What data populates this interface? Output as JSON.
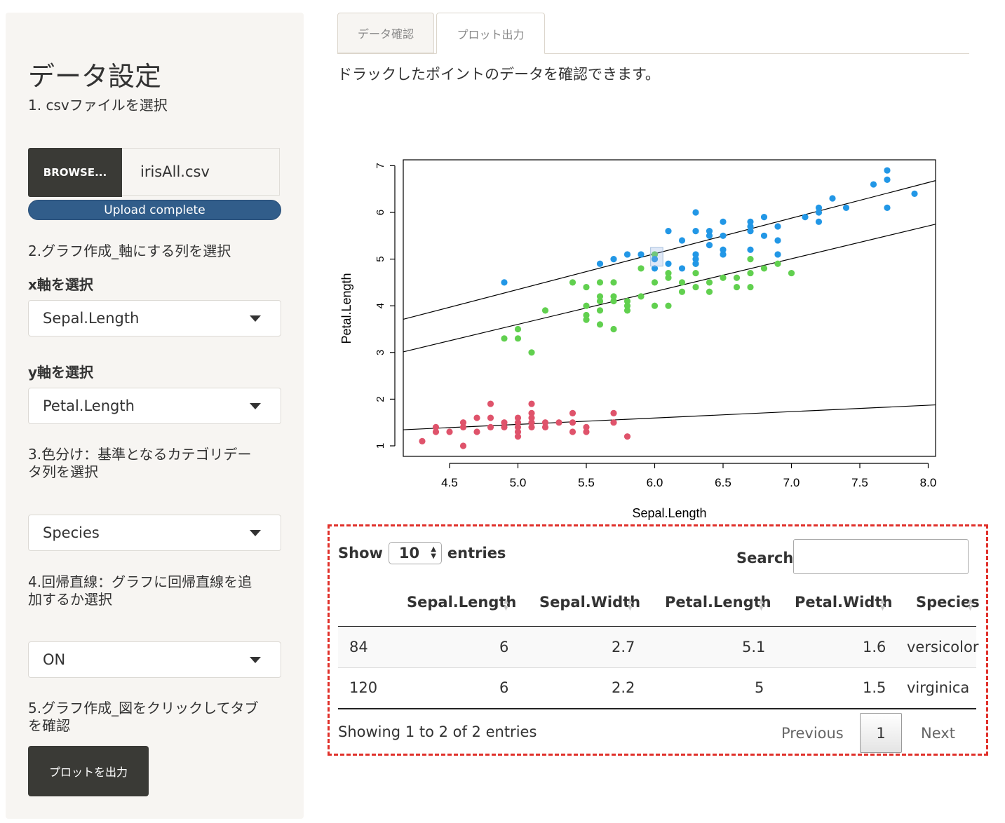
{
  "sidebar": {
    "title": "データ設定",
    "step1": "1. csvファイルを選択",
    "browse_label": "BROWSE...",
    "file_name": "irisAll.csv",
    "upload_status": "Upload complete",
    "step2": "2.グラフ作成_軸にする列を選択",
    "x_label": "x軸を選択",
    "x_value": "Sepal.Length",
    "y_label": "y軸を選択",
    "y_value": "Petal.Length",
    "step3_line1": "3.色分け：基準となるカテゴリデー",
    "step3_line2": "タ列を選択",
    "color_value": "Species",
    "step4_line1": "4.回帰直線：グラフに回帰直線を追",
    "step4_line2": "加するか選択",
    "reg_value": "ON",
    "step5_line1": "5.グラフ作成_図をクリックしてタブ",
    "step5_line2": "を確認",
    "plot_button": "プロットを出力"
  },
  "tabs": [
    {
      "label": "データ確認",
      "active": false
    },
    {
      "label": "プロット出力",
      "active": true
    }
  ],
  "description": "ドラックしたポイントのデータを確認できます。",
  "chart_data": {
    "type": "scatter",
    "xlabel": "Sepal.Length",
    "ylabel": "Petal.Length",
    "xlim": [
      4.3,
      7.9
    ],
    "ylim": [
      1,
      6.9
    ],
    "x_ticks": [
      "4.5",
      "5.0",
      "5.5",
      "6.0",
      "6.5",
      "7.0",
      "7.5",
      "8.0"
    ],
    "y_ticks": [
      "1",
      "2",
      "3",
      "4",
      "5",
      "6",
      "7"
    ],
    "colors": {
      "setosa": "#df536b",
      "versicolor": "#61d04f",
      "virginica": "#2297e6"
    },
    "series": [
      {
        "color_key": "setosa",
        "points": [
          [
            4.3,
            1.1
          ],
          [
            4.4,
            1.3
          ],
          [
            4.4,
            1.4
          ],
          [
            4.5,
            1.3
          ],
          [
            4.6,
            1.0
          ],
          [
            4.6,
            1.4
          ],
          [
            4.6,
            1.5
          ],
          [
            4.7,
            1.3
          ],
          [
            4.7,
            1.6
          ],
          [
            4.8,
            1.4
          ],
          [
            4.8,
            1.6
          ],
          [
            4.8,
            1.9
          ],
          [
            4.9,
            1.4
          ],
          [
            4.9,
            1.5
          ],
          [
            5.0,
            1.2
          ],
          [
            5.0,
            1.3
          ],
          [
            5.0,
            1.4
          ],
          [
            5.0,
            1.5
          ],
          [
            5.0,
            1.6
          ],
          [
            5.1,
            1.4
          ],
          [
            5.1,
            1.5
          ],
          [
            5.1,
            1.7
          ],
          [
            5.1,
            1.9
          ],
          [
            5.1,
            1.6
          ],
          [
            5.2,
            1.4
          ],
          [
            5.2,
            1.5
          ],
          [
            5.3,
            1.5
          ],
          [
            5.4,
            1.3
          ],
          [
            5.4,
            1.5
          ],
          [
            5.4,
            1.7
          ],
          [
            5.5,
            1.3
          ],
          [
            5.5,
            1.4
          ],
          [
            5.7,
            1.5
          ],
          [
            5.7,
            1.7
          ],
          [
            5.8,
            1.2
          ]
        ]
      },
      {
        "color_key": "versicolor",
        "points": [
          [
            4.9,
            3.3
          ],
          [
            5.0,
            3.3
          ],
          [
            5.0,
            3.5
          ],
          [
            5.1,
            3.0
          ],
          [
            5.2,
            3.9
          ],
          [
            5.4,
            4.5
          ],
          [
            5.5,
            3.7
          ],
          [
            5.5,
            3.8
          ],
          [
            5.5,
            4.0
          ],
          [
            5.5,
            4.4
          ],
          [
            5.6,
            3.6
          ],
          [
            5.6,
            3.9
          ],
          [
            5.6,
            4.1
          ],
          [
            5.6,
            4.2
          ],
          [
            5.6,
            4.5
          ],
          [
            5.7,
            3.5
          ],
          [
            5.7,
            4.1
          ],
          [
            5.7,
            4.2
          ],
          [
            5.7,
            4.5
          ],
          [
            5.8,
            3.9
          ],
          [
            5.8,
            4.0
          ],
          [
            5.8,
            4.1
          ],
          [
            5.9,
            4.2
          ],
          [
            5.9,
            4.8
          ],
          [
            6.0,
            4.0
          ],
          [
            6.0,
            4.5
          ],
          [
            6.0,
            5.1
          ],
          [
            6.1,
            4.0
          ],
          [
            6.1,
            4.6
          ],
          [
            6.1,
            4.7
          ],
          [
            6.2,
            4.3
          ],
          [
            6.2,
            4.5
          ],
          [
            6.3,
            4.4
          ],
          [
            6.3,
            4.7
          ],
          [
            6.3,
            4.9
          ],
          [
            6.4,
            4.3
          ],
          [
            6.4,
            4.5
          ],
          [
            6.5,
            4.6
          ],
          [
            6.6,
            4.4
          ],
          [
            6.6,
            4.6
          ],
          [
            6.7,
            4.4
          ],
          [
            6.7,
            4.7
          ],
          [
            6.7,
            5.0
          ],
          [
            6.8,
            4.8
          ],
          [
            6.9,
            4.9
          ],
          [
            7.0,
            4.7
          ]
        ]
      },
      {
        "color_key": "virginica",
        "points": [
          [
            4.9,
            4.5
          ],
          [
            5.6,
            4.9
          ],
          [
            5.7,
            5.0
          ],
          [
            5.8,
            5.1
          ],
          [
            5.9,
            5.1
          ],
          [
            6.0,
            4.8
          ],
          [
            6.0,
            5.0
          ],
          [
            6.1,
            4.9
          ],
          [
            6.1,
            5.6
          ],
          [
            6.2,
            4.8
          ],
          [
            6.2,
            5.4
          ],
          [
            6.3,
            4.9
          ],
          [
            6.3,
            5.0
          ],
          [
            6.3,
            5.1
          ],
          [
            6.3,
            5.6
          ],
          [
            6.3,
            6.0
          ],
          [
            6.4,
            5.3
          ],
          [
            6.4,
            5.5
          ],
          [
            6.4,
            5.6
          ],
          [
            6.5,
            5.1
          ],
          [
            6.5,
            5.2
          ],
          [
            6.5,
            5.5
          ],
          [
            6.5,
            5.8
          ],
          [
            6.7,
            5.2
          ],
          [
            6.7,
            5.6
          ],
          [
            6.7,
            5.7
          ],
          [
            6.7,
            5.8
          ],
          [
            6.8,
            5.5
          ],
          [
            6.8,
            5.9
          ],
          [
            6.9,
            5.1
          ],
          [
            6.9,
            5.4
          ],
          [
            6.9,
            5.7
          ],
          [
            7.1,
            5.9
          ],
          [
            7.2,
            6.0
          ],
          [
            7.2,
            6.1
          ],
          [
            7.2,
            5.8
          ],
          [
            7.3,
            6.3
          ],
          [
            7.4,
            6.1
          ],
          [
            7.6,
            6.6
          ],
          [
            7.7,
            6.1
          ],
          [
            7.7,
            6.7
          ],
          [
            7.7,
            6.9
          ],
          [
            7.9,
            6.4
          ]
        ]
      }
    ],
    "regression_lines": [
      {
        "color_key": "setosa",
        "from": [
          4.2,
          1.35
        ],
        "to": [
          8.0,
          1.87
        ]
      },
      {
        "color_key": "versicolor",
        "from": [
          4.2,
          3.04
        ],
        "to": [
          8.0,
          5.71
        ]
      },
      {
        "color_key": "virginica",
        "from": [
          4.2,
          3.74
        ],
        "to": [
          8.0,
          6.64
        ]
      }
    ],
    "brush": {
      "x": [
        5.97,
        6.06
      ],
      "y": [
        4.85,
        5.25
      ]
    }
  },
  "table": {
    "show_label": "Show",
    "length_value": "10",
    "entries_label": "entries",
    "search_label": "Search:",
    "columns": [
      "Sepal.Length",
      "Sepal.Width",
      "Petal.Length",
      "Petal.Width",
      "Species"
    ],
    "rows": [
      [
        "84",
        "6",
        "2.7",
        "5.1",
        "1.6",
        "versicolor"
      ],
      [
        "120",
        "6",
        "2.2",
        "5",
        "1.5",
        "virginica"
      ]
    ],
    "info": "Showing 1 to 2 of 2 entries",
    "prev_label": "Previous",
    "page": "1",
    "next_label": "Next"
  }
}
